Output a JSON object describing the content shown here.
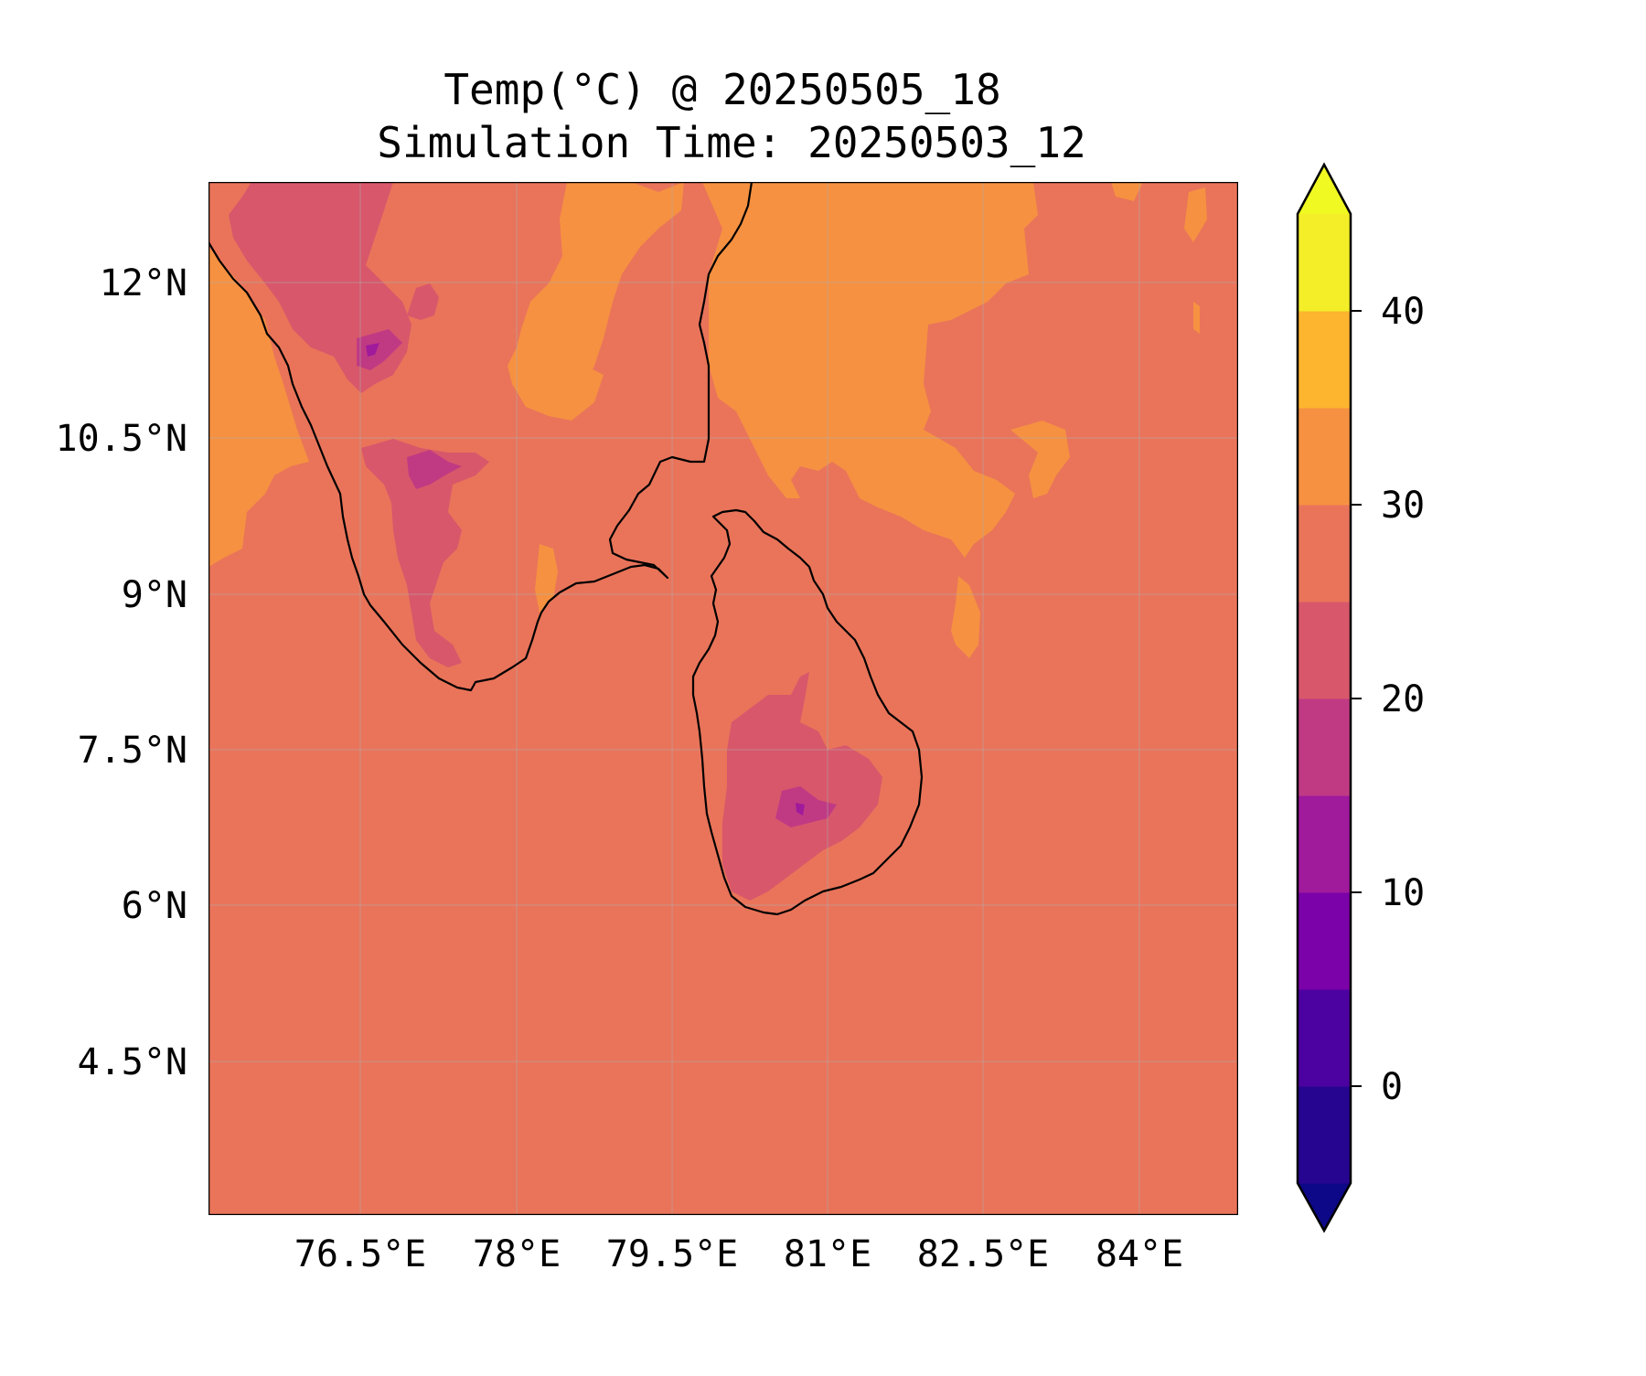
{
  "title_line1": "Temp(°C) @ 20250505_18",
  "title_line2": "Simulation Time: 20250503_12",
  "map": {
    "lon_ticks": [
      "76.5°E",
      "78°E",
      "79.5°E",
      "81°E",
      "82.5°E",
      "84°E"
    ],
    "lat_ticks": [
      "12°N",
      "10.5°N",
      "9°N",
      "7.5°N",
      "6°N",
      "4.5°N"
    ],
    "region_fill": "#e9745a"
  },
  "colorbar": {
    "ticks": [
      "40",
      "30",
      "20",
      "10",
      "0"
    ],
    "levels": [
      -5,
      0,
      5,
      10,
      15,
      20,
      25,
      30,
      35,
      40,
      45
    ],
    "colors": [
      "#260591",
      "#4c02a1",
      "#7a02a8",
      "#a01a9c",
      "#c03a83",
      "#d8576b",
      "#e9745a",
      "#f69141",
      "#fdb42f",
      "#f3ee27"
    ],
    "under_color": "#0d0887",
    "over_color": "#f0f921"
  },
  "colors": {
    "warm": "#f69141",
    "cool": "#d8576b",
    "colder": "#c03a83",
    "coldest": "#a01a9c"
  }
}
